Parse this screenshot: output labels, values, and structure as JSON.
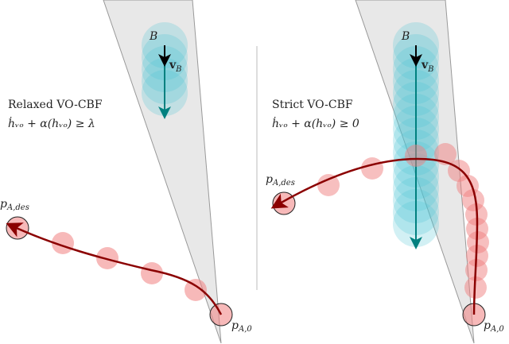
{
  "colors": {
    "cone_fill": "#e8e8e8",
    "cone_edge": "#999999",
    "obstacle_fill": "#4cc4d4",
    "obstacle_arrow": "#00807f",
    "velocity_arrow": "#000000",
    "trajectory": "#8b0000",
    "agent_fill": "#f08080"
  },
  "left_panel": {
    "title": "Relaxed VO-CBF",
    "condition": "ḣᵥₒ + α(hᵥₒ) ≥ λ",
    "obstacle_label": "B",
    "velocity_label": "v",
    "velocity_sub": "B",
    "goal_label": "p",
    "goal_sub": "A,des",
    "start_label": "p",
    "start_sub": "A,0"
  },
  "right_panel": {
    "title": "Strict VO-CBF",
    "condition": "ḣᵥₒ + α(hᵥₒ) ≥ 0",
    "obstacle_label": "B",
    "velocity_label": "v",
    "velocity_sub": "B",
    "goal_label": "p",
    "goal_sub": "A,des",
    "start_label": "p",
    "start_sub": "A,0"
  }
}
